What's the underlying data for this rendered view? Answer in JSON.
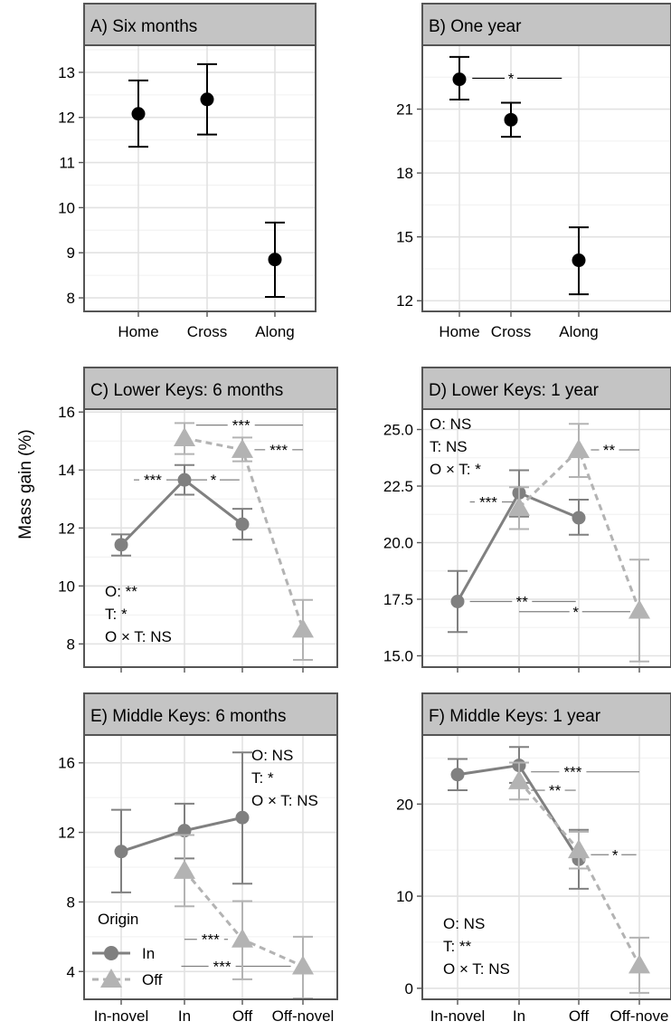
{
  "figure": {
    "ylabel": "Mass gain (%)",
    "legend": {
      "title": "Origin",
      "items": [
        {
          "label": "In",
          "color": "#808080",
          "marker": "circle",
          "line": "solid"
        },
        {
          "label": "Off",
          "color": "#b3b3b3",
          "marker": "triangle",
          "line": "dashed"
        }
      ]
    }
  },
  "chart_data": [
    {
      "type": "scatter",
      "title": "A) Six months",
      "categories": [
        "Home",
        "Cross",
        "Along"
      ],
      "ylim": [
        7.7,
        13.6
      ],
      "yticks": [
        8,
        9,
        10,
        11,
        12,
        13
      ],
      "series": [
        {
          "values": [
            12.08,
            12.4,
            8.85
          ],
          "lower": [
            11.35,
            11.62,
            8.02
          ],
          "upper": [
            12.82,
            13.18,
            9.67
          ],
          "color": "#000000",
          "marker": "circle",
          "line": "none"
        }
      ],
      "annotations": [],
      "sig_lines": []
    },
    {
      "type": "scatter",
      "title": "B) One year",
      "categories": [
        "Home",
        "Cross",
        "Along"
      ],
      "ylim": [
        11.5,
        24.0
      ],
      "yticks": [
        12,
        15,
        18,
        21
      ],
      "series": [
        {
          "values": [
            22.4,
            20.5,
            13.9
          ],
          "lower": [
            21.45,
            19.7,
            12.3
          ],
          "upper": [
            23.45,
            21.3,
            15.45
          ],
          "color": "#000000",
          "marker": "circle",
          "line": "none"
        }
      ],
      "annotations": [],
      "sig_lines": [
        {
          "x1": 0.25,
          "x2": 1.75,
          "y": 22.45,
          "label": "*",
          "label_x": 1.0,
          "color": "#000000"
        }
      ]
    },
    {
      "type": "line",
      "title": "C) Lower Keys: 6 months",
      "categories": [
        "In-novel",
        "In",
        "Off",
        "Off-novel"
      ],
      "ylim": [
        7.2,
        16.1
      ],
      "yticks": [
        8,
        10,
        12,
        14,
        16
      ],
      "series": [
        {
          "name": "In",
          "x": [
            0,
            1,
            2
          ],
          "values": [
            11.42,
            13.66,
            12.13
          ],
          "lower": [
            11.05,
            13.15,
            11.6
          ],
          "upper": [
            11.78,
            14.17,
            12.66
          ],
          "color": "#808080",
          "marker": "circle",
          "line": "solid"
        },
        {
          "name": "Off",
          "x": [
            1,
            2,
            3
          ],
          "values": [
            15.1,
            14.7,
            8.5
          ],
          "lower": [
            14.55,
            14.3,
            7.45
          ],
          "upper": [
            15.62,
            15.12,
            9.52
          ],
          "color": "#b3b3b3",
          "marker": "triangle",
          "line": "dashed"
        }
      ],
      "annotations": [
        "O: **",
        "T: *",
        "O × T: NS"
      ],
      "annotation_pos": "bottom-left",
      "sig_lines": [
        {
          "x1": 0.2,
          "x2": 0.95,
          "y": 13.66,
          "label": "***",
          "label_x": 0.5,
          "color": "#808080"
        },
        {
          "x1": 1.05,
          "x2": 1.95,
          "y": 13.66,
          "label": "*",
          "label_x": 1.5,
          "color": "#808080"
        },
        {
          "x1": 1.2,
          "x2": 2.0,
          "y": 15.55,
          "label": "***",
          "label_x": 1.98,
          "color": "#808080",
          "x3": 3.0
        },
        {
          "x1": 2.2,
          "x2": 3.0,
          "y": 14.7,
          "label": "***",
          "label_x": 2.6,
          "color": "#808080"
        }
      ]
    },
    {
      "type": "line",
      "title": "D) Lower Keys: 1 year",
      "categories": [
        "In-novel",
        "In",
        "Off",
        "Off-novel"
      ],
      "ylim": [
        14.5,
        25.9
      ],
      "yticks": [
        15.0,
        17.5,
        20.0,
        22.5,
        25.0
      ],
      "tick_format": "0.0",
      "series": [
        {
          "name": "In",
          "x": [
            0,
            1,
            2
          ],
          "values": [
            17.4,
            22.2,
            21.1
          ],
          "lower": [
            16.05,
            21.15,
            20.35
          ],
          "upper": [
            18.75,
            23.2,
            21.9
          ],
          "color": "#808080",
          "marker": "circle",
          "line": "solid"
        },
        {
          "name": "Off",
          "x": [
            1,
            2,
            3
          ],
          "values": [
            21.55,
            24.1,
            17.0
          ],
          "lower": [
            20.6,
            22.9,
            14.75
          ],
          "upper": [
            22.45,
            25.25,
            19.25
          ],
          "color": "#b3b3b3",
          "marker": "triangle",
          "line": "dashed"
        }
      ],
      "annotations": [
        "O: NS",
        "T: NS",
        "O × T: *"
      ],
      "annotation_pos": "top-left",
      "sig_lines": [
        {
          "x1": 0.2,
          "x2": 0.9,
          "y": 21.8,
          "label": "***",
          "label_x": 0.5,
          "color": "#808080"
        },
        {
          "x1": 2.2,
          "x2": 3.0,
          "y": 24.1,
          "label": "**",
          "label_x": 2.5,
          "color": "#808080"
        },
        {
          "x1": 0.2,
          "x2": 1.95,
          "y": 17.4,
          "label": "**",
          "label_x": 1.05,
          "color": "#808080"
        },
        {
          "x1": 1.0,
          "x2": 2.85,
          "y": 16.95,
          "label": "*",
          "label_x": 1.95,
          "color": "#808080"
        }
      ]
    },
    {
      "type": "line",
      "title": "E) Middle Keys: 6 months",
      "categories": [
        "In-novel",
        "In",
        "Off",
        "Off-novel"
      ],
      "ylim": [
        2.4,
        17.6
      ],
      "yticks": [
        4,
        8,
        12,
        16
      ],
      "series": [
        {
          "name": "In",
          "x": [
            0,
            1,
            2
          ],
          "values": [
            10.9,
            12.1,
            12.85
          ],
          "lower": [
            8.55,
            10.5,
            9.05
          ],
          "upper": [
            13.3,
            13.65,
            16.6
          ],
          "color": "#808080",
          "marker": "circle",
          "line": "solid"
        },
        {
          "name": "Off",
          "x": [
            1,
            2,
            3
          ],
          "values": [
            9.8,
            5.85,
            4.3
          ],
          "lower": [
            7.75,
            3.55,
            2.45
          ],
          "upper": [
            11.85,
            8.05,
            6.0
          ],
          "color": "#b3b3b3",
          "marker": "triangle",
          "line": "dashed"
        }
      ],
      "annotations": [
        "O: NS",
        "T: *",
        "O × T: NS"
      ],
      "annotation_pos": "top-right",
      "sig_lines": [
        {
          "x1": 1.0,
          "x2": 1.75,
          "y": 5.85,
          "label": "***",
          "label_x": 1.45,
          "color": "#808080"
        },
        {
          "x1": 0.95,
          "x2": 2.8,
          "y": 4.3,
          "label": "***",
          "label_x": 1.65,
          "color": "#808080"
        }
      ]
    },
    {
      "type": "line",
      "title": "F) Middle Keys: 1 year",
      "categories": [
        "In-novel",
        "In",
        "Off",
        "Off-nove"
      ],
      "ylim": [
        -1.2,
        27.5
      ],
      "yticks": [
        0,
        10,
        20
      ],
      "series": [
        {
          "name": "In",
          "x": [
            0,
            1,
            2
          ],
          "values": [
            23.2,
            24.2,
            14.0
          ],
          "lower": [
            21.5,
            22.3,
            10.8
          ],
          "upper": [
            24.9,
            26.2,
            17.2
          ],
          "color": "#808080",
          "marker": "circle",
          "line": "solid"
        },
        {
          "name": "Off",
          "x": [
            1,
            2,
            3
          ],
          "values": [
            22.5,
            15.0,
            2.5
          ],
          "lower": [
            20.5,
            13.0,
            -0.5
          ],
          "upper": [
            24.5,
            17.0,
            5.5
          ],
          "color": "#b3b3b3",
          "marker": "triangle",
          "line": "dashed"
        }
      ],
      "annotations": [
        "O: NS",
        "T: **",
        "O × T: NS"
      ],
      "annotation_pos": "bottom-left",
      "sig_lines": [
        {
          "x1": 1.2,
          "x2": 3.0,
          "y": 23.5,
          "label": "***",
          "label_x": 1.9,
          "color": "#808080"
        },
        {
          "x1": 1.2,
          "x2": 1.95,
          "y": 21.5,
          "label": "**",
          "label_x": 1.6,
          "color": "#808080"
        },
        {
          "x1": 2.2,
          "x2": 2.95,
          "y": 14.5,
          "label": "*",
          "label_x": 2.6,
          "color": "#808080"
        }
      ]
    }
  ]
}
